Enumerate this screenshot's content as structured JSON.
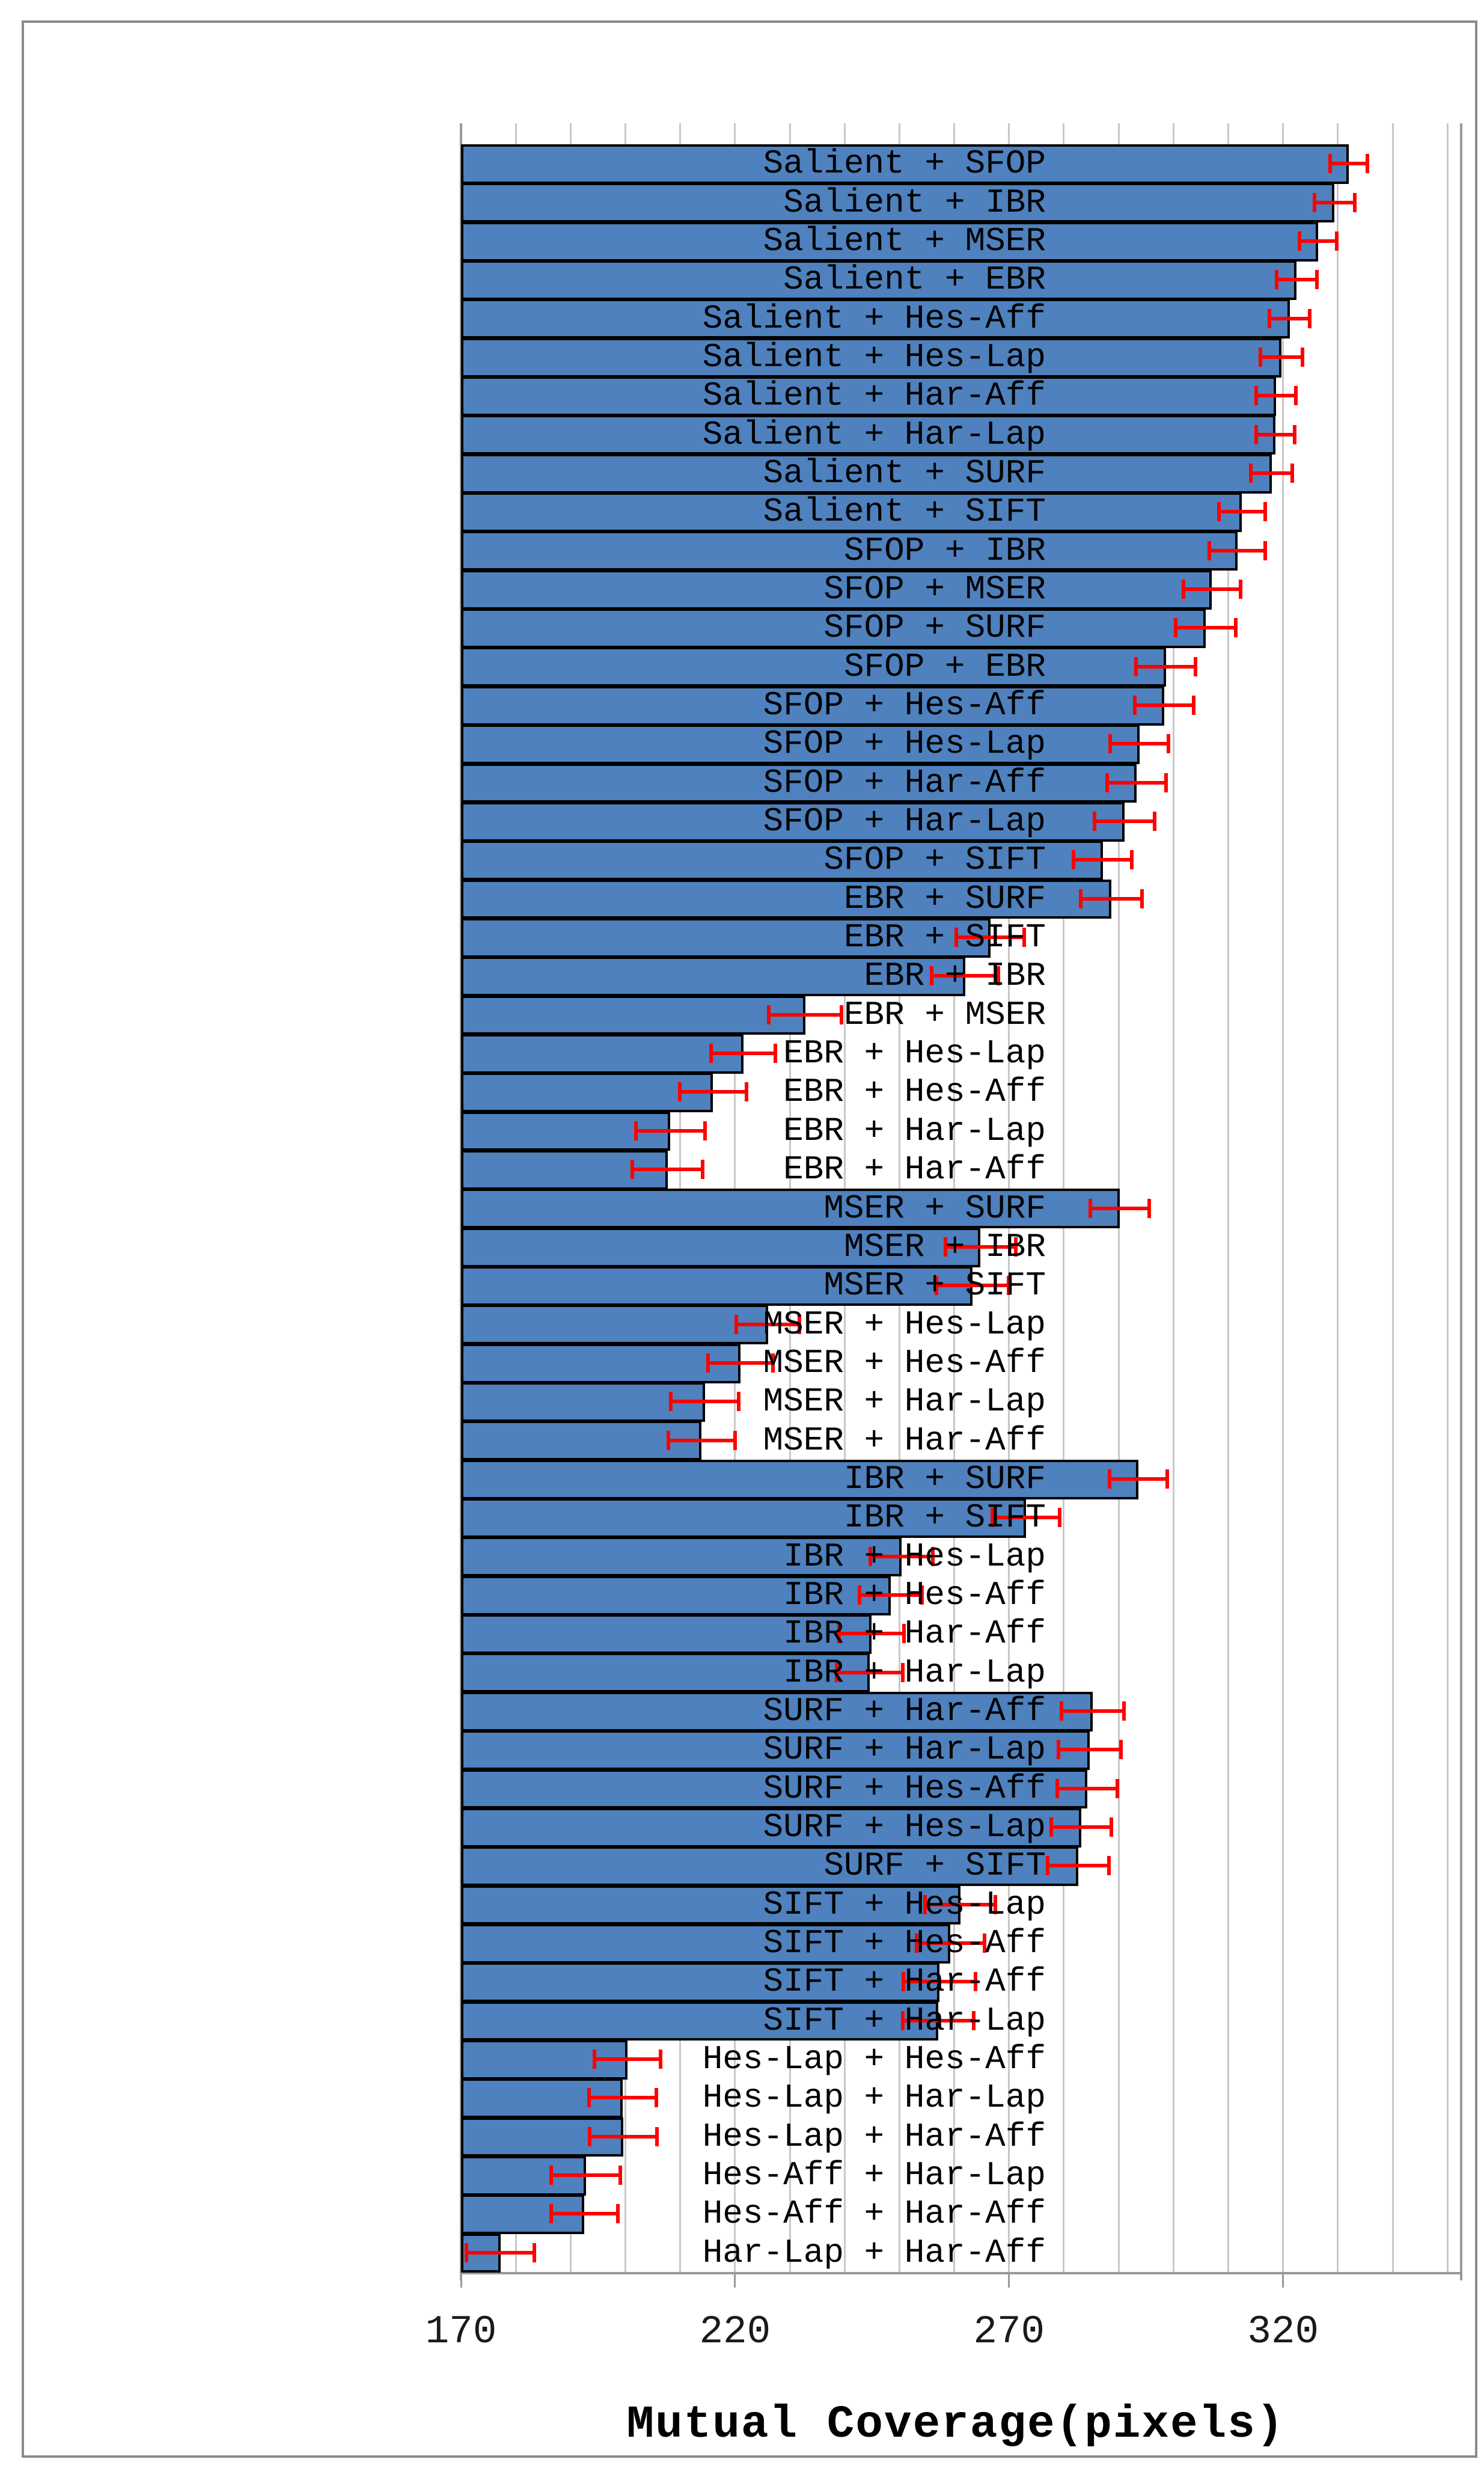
{
  "chart_data": {
    "type": "bar",
    "orientation": "horizontal",
    "title": "",
    "xlabel": "Mutual Coverage(pixels)",
    "ylabel": "",
    "xlim": [
      170,
      352.5
    ],
    "x_tick_values": [
      170,
      220,
      270,
      320
    ],
    "x_tick_labels": [
      "170",
      "220",
      "270",
      "320"
    ],
    "minor_grid_step": 10,
    "grid": "on",
    "legend": "none",
    "bar_color": "#4e81bd",
    "bar_border_color": "#000000",
    "error_bar_color": "#fe0000",
    "categories": [
      "Salient + SFOP",
      "Salient + IBR",
      "Salient + MSER",
      "Salient + EBR",
      "Salient + Hes-Aff",
      "Salient + Hes-Lap",
      "Salient + Har-Aff",
      "Salient + Har-Lap",
      "Salient + SURF",
      "Salient + SIFT",
      "SFOP + IBR",
      "SFOP + MSER",
      "SFOP + SURF",
      "SFOP + EBR",
      "SFOP + Hes-Aff",
      "SFOP + Hes-Lap",
      "SFOP + Har-Aff",
      "SFOP + Har-Lap",
      "SFOP + SIFT",
      "EBR + SURF",
      "EBR + SIFT",
      "EBR + IBR",
      "EBR + MSER",
      "EBR + Hes-Lap",
      "EBR + Hes-Aff",
      "EBR + Har-Lap",
      "EBR + Har-Aff",
      "MSER + SURF",
      "MSER + IBR",
      "MSER + SIFT",
      "MSER + Hes-Lap",
      "MSER + Hes-Aff",
      "MSER + Har-Lap",
      "MSER + Har-Aff",
      "IBR + SURF",
      "IBR + SIFT",
      "IBR + Hes-Lap",
      "IBR + Hes-Aff",
      "IBR + Har-Aff",
      "IBR + Har-Lap",
      "SURF + Har-Aff",
      "SURF + Har-Lap",
      "SURF + Hes-Aff",
      "SURF + Hes-Lap",
      "SURF + SIFT",
      "SIFT + Hes-Lap",
      "SIFT + Hes-Aff",
      "SIFT + Har-Aff",
      "SIFT + Har-Lap",
      "Hes-Lap + Hes-Aff",
      "Hes-Lap + Har-Lap",
      "Hes-Lap + Har-Aff",
      "Hes-Aff + Har-Lap",
      "Hes-Aff + Har-Aff",
      "Har-Lap + Har-Aff"
    ],
    "values": [
      332.0,
      329.4,
      326.4,
      322.5,
      321.2,
      319.7,
      318.7,
      318.6,
      317.9,
      312.5,
      311.7,
      307.0,
      305.9,
      298.6,
      298.3,
      293.8,
      293.3,
      291.1,
      287.1,
      288.7,
      266.6,
      262.0,
      232.8,
      221.5,
      216.0,
      208.2,
      207.7,
      290.2,
      264.8,
      263.3,
      226.0,
      221.0,
      214.5,
      213.9,
      293.6,
      273.1,
      250.4,
      248.4,
      244.9,
      244.6,
      285.3,
      284.7,
      284.3,
      283.2,
      282.6,
      261.1,
      259.3,
      257.3,
      257.1,
      200.4,
      199.5,
      199.6,
      192.8,
      192.5,
      177.2
    ],
    "errors": [
      3.4,
      3.7,
      3.4,
      3.7,
      3.7,
      3.8,
      3.6,
      3.5,
      3.8,
      4.2,
      5.1,
      5.2,
      5.5,
      5.4,
      5.4,
      5.3,
      5.4,
      5.5,
      5.3,
      5.6,
      6.2,
      6.1,
      6.6,
      5.9,
      6.1,
      6.3,
      6.4,
      5.4,
      6.4,
      6.6,
      5.8,
      5.9,
      6.2,
      6.1,
      5.3,
      6.1,
      5.7,
      5.7,
      5.9,
      6.0,
      5.7,
      5.7,
      5.5,
      5.5,
      5.6,
      6.4,
      6.2,
      6.6,
      6.5,
      6.0,
      6.1,
      6.1,
      6.3,
      6.1,
      6.2
    ]
  }
}
